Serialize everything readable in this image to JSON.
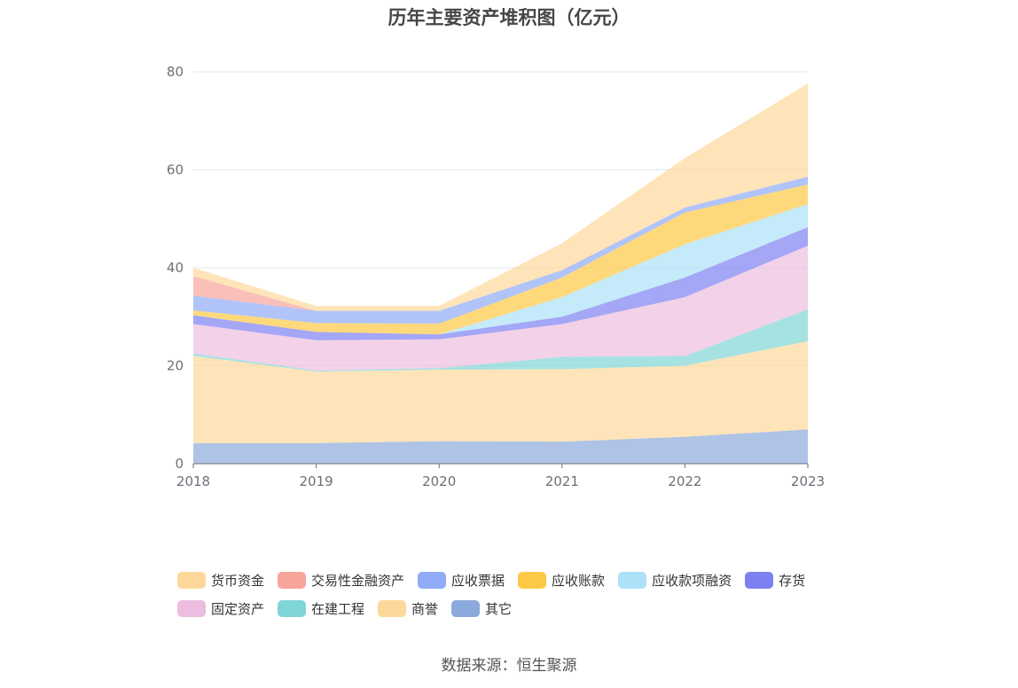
{
  "title": "历年主要资产堆积图（亿元）",
  "source": "数据来源：恒生聚源",
  "colors": {
    "货币资金": "#fdd89a",
    "交易性金融资产": "#f7a49a",
    "应收票据": "#8fabf7",
    "应收账款": "#fdc945",
    "应收款项融资": "#ade1f7",
    "存货": "#7e80f2",
    "固定资产": "#ecbddf",
    "在建工程": "#80d6d6",
    "商誉": "#fdd89a",
    "其它": "#8ba9dc"
  },
  "chart_data": {
    "type": "area",
    "stacked": true,
    "title": "历年主要资产堆积图（亿元）",
    "x": [
      "2018",
      "2019",
      "2020",
      "2021",
      "2022",
      "2023"
    ],
    "ylim": [
      0,
      80
    ],
    "yticks": [
      0,
      20,
      40,
      60,
      80
    ],
    "grid": true,
    "legend_position": "bottom",
    "series": [
      {
        "name": "其它",
        "values": [
          4.2,
          4.2,
          4.6,
          4.5,
          5.5,
          7.0
        ]
      },
      {
        "name": "商誉",
        "values": [
          17.8,
          14.6,
          14.6,
          14.8,
          14.5,
          18.0
        ]
      },
      {
        "name": "在建工程",
        "values": [
          0.5,
          0.2,
          0.3,
          2.5,
          2.0,
          6.5
        ]
      },
      {
        "name": "固定资产",
        "values": [
          6.0,
          6.2,
          5.9,
          6.7,
          12.0,
          13.0
        ]
      },
      {
        "name": "存货",
        "values": [
          1.8,
          1.7,
          1.0,
          1.5,
          4.0,
          3.8
        ]
      },
      {
        "name": "应收款项融资",
        "values": [
          0.0,
          0.0,
          0.0,
          4.0,
          6.8,
          4.7
        ]
      },
      {
        "name": "应收账款",
        "values": [
          1.0,
          1.8,
          2.2,
          4.0,
          6.5,
          4.0
        ]
      },
      {
        "name": "应收票据",
        "values": [
          3.0,
          2.5,
          2.6,
          1.5,
          1.0,
          1.6
        ]
      },
      {
        "name": "交易性金融资产",
        "values": [
          4.0,
          0.0,
          0.0,
          0.0,
          0.0,
          0.0
        ]
      },
      {
        "name": "货币资金",
        "values": [
          1.7,
          1.0,
          1.0,
          5.5,
          10.1,
          19.0
        ]
      }
    ]
  },
  "legend": {
    "rows": [
      [
        "货币资金",
        "交易性金融资产",
        "应收票据",
        "应收账款",
        "应收款项融资",
        "存货"
      ],
      [
        "固定资产",
        "在建工程",
        "商誉",
        "其它"
      ]
    ]
  }
}
